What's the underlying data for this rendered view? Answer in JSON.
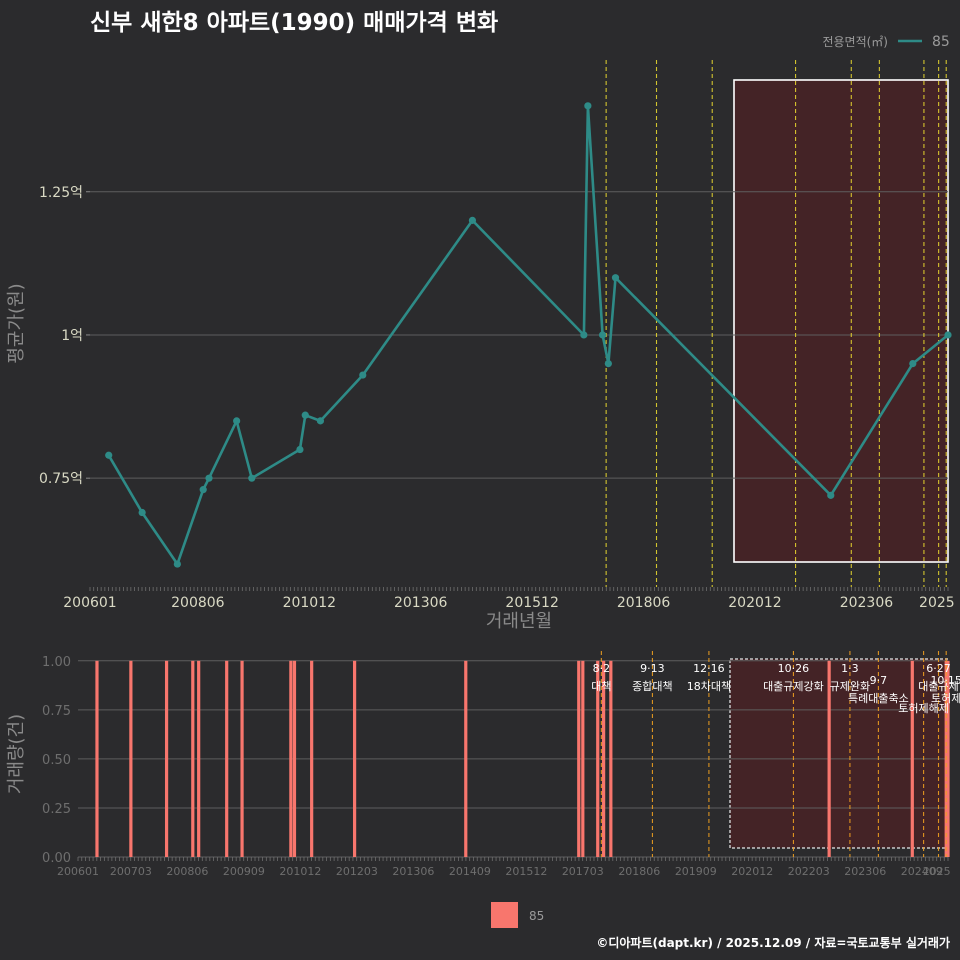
{
  "chart_data": [
    {
      "type": "line",
      "title": "신부 새한8 아파트(1990) 매매가격 변화",
      "xlabel": "거래년월",
      "ylabel": "평균가(원)",
      "legend_title": "전용면적(㎡)",
      "legend_position": "top-right",
      "x_tick_labels": [
        "200601",
        "200806",
        "201012",
        "201306",
        "201512",
        "201806",
        "202012",
        "202306",
        "2025"
      ],
      "x_ticks": [
        2006.0,
        2008.42,
        2010.92,
        2013.42,
        2015.92,
        2018.42,
        2020.92,
        2023.42,
        2025.0
      ],
      "xlim": [
        2006.0,
        2025.25
      ],
      "y_tick_labels": [
        "0.75억",
        "1억",
        "1.25억"
      ],
      "y_ticks": [
        0.75,
        1.0,
        1.25
      ],
      "ylim": [
        0.56,
        1.48
      ],
      "series": [
        {
          "name": "85",
          "color": "#2e8b87",
          "x": [
            2006.42,
            2007.17,
            2007.96,
            2008.54,
            2008.67,
            2009.29,
            2009.63,
            2010.71,
            2010.83,
            2011.17,
            2012.12,
            2014.58,
            2017.08,
            2017.17,
            2017.5,
            2017.63,
            2017.79,
            2022.62,
            2024.46,
            2025.25
          ],
          "values": [
            0.79,
            0.69,
            0.6,
            0.73,
            0.75,
            0.85,
            0.75,
            0.8,
            0.86,
            0.85,
            0.93,
            1.2,
            1.0,
            1.4,
            1.0,
            0.95,
            1.1,
            0.72,
            0.95,
            1.0
          ]
        }
      ],
      "highlight_range": [
        2020.92,
        2025.25
      ],
      "policy_lines": [
        2017.58,
        2018.71,
        2019.96,
        2021.83,
        2023.08,
        2023.71,
        2024.71,
        2025.04,
        2025.21
      ]
    },
    {
      "type": "bar",
      "xlabel": "",
      "ylabel": "거래량(건)",
      "x_tick_labels": [
        "200601",
        "200703",
        "200806",
        "200909",
        "201012",
        "201203",
        "201306",
        "201409",
        "201512",
        "201703",
        "201806",
        "201909",
        "202012",
        "202203",
        "202306",
        "202409",
        "2025"
      ],
      "x_ticks": [
        2006.0,
        2007.17,
        2008.42,
        2009.67,
        2010.92,
        2012.17,
        2013.42,
        2014.67,
        2015.92,
        2017.17,
        2018.42,
        2019.67,
        2020.92,
        2022.17,
        2023.42,
        2024.67,
        2025.0
      ],
      "y_tick_labels": [
        "0.00",
        "0.25",
        "0.50",
        "0.75",
        "1.00"
      ],
      "y_ticks": [
        0,
        0.25,
        0.5,
        0.75,
        1.0
      ],
      "ylim": [
        0,
        1.05
      ],
      "xlim": [
        2006.0,
        2025.25
      ],
      "series": [
        {
          "name": "85",
          "color": "#f8766d",
          "x": [
            2006.42,
            2007.17,
            2007.96,
            2008.54,
            2008.67,
            2009.29,
            2009.63,
            2010.71,
            2010.79,
            2011.17,
            2012.12,
            2014.58,
            2017.08,
            2017.17,
            2017.5,
            2017.63,
            2017.79,
            2022.62,
            2024.46,
            2025.21,
            2025.25
          ],
          "values": [
            1,
            1,
            1,
            1,
            1,
            1,
            1,
            1,
            1,
            1,
            1,
            1,
            1,
            1,
            1,
            1,
            1,
            1,
            1,
            1,
            1
          ]
        }
      ],
      "policy_events": [
        {
          "date": "8·2",
          "label": "대책",
          "x": 2017.58
        },
        {
          "date": "9·13",
          "label": "종합대책",
          "x": 2018.71
        },
        {
          "date": "12·16",
          "label": "18차대책",
          "x": 2019.96
        },
        {
          "date": "10·26",
          "label": "대출규제강화",
          "x": 2021.83
        },
        {
          "date": "1·3",
          "label": "규제완화",
          "x": 2023.08
        },
        {
          "date": "9·7",
          "label": "특례대출축소",
          "x": 2023.71
        },
        {
          "date": "",
          "label": "토허제해제",
          "x": 2024.71
        },
        {
          "date": "6·27",
          "label": "대출규제",
          "x": 2025.04
        },
        {
          "date": "10·15",
          "label": "토허제",
          "x": 2025.21
        }
      ],
      "legend_entries": [
        "85"
      ]
    }
  ],
  "footer": "©디아파트(dapt.kr) / 2025.12.09 / 자료=국토교통부 실거래가"
}
